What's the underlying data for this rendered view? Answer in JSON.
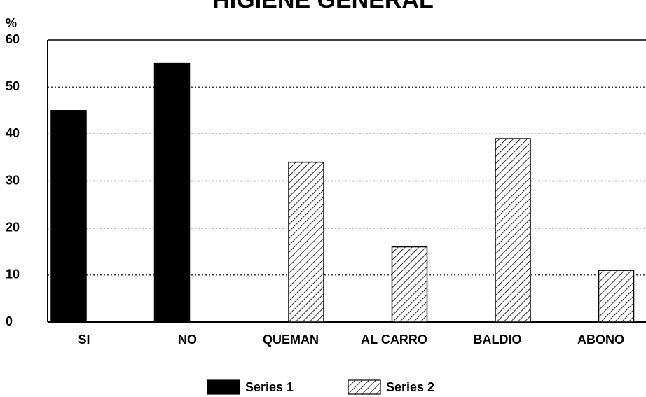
{
  "chart_data": {
    "type": "bar",
    "title": "HIGIENE GENERAL",
    "y_label": "%",
    "categories": [
      "SI",
      "NO",
      "QUEMAN",
      "AL CARRO",
      "BALDIO",
      "ABONO"
    ],
    "series": [
      {
        "name": "Series 1",
        "color": "#000000",
        "pattern": "solid",
        "values": [
          45,
          55,
          null,
          null,
          null,
          null
        ]
      },
      {
        "name": "Series 2",
        "color": "#000000",
        "pattern": "hatch",
        "values": [
          null,
          null,
          34,
          16,
          39,
          11
        ]
      }
    ],
    "ylim": [
      0,
      60
    ],
    "yticks": [
      0,
      10,
      20,
      30,
      40,
      50,
      60
    ],
    "grid": true,
    "legend": "bottom"
  }
}
